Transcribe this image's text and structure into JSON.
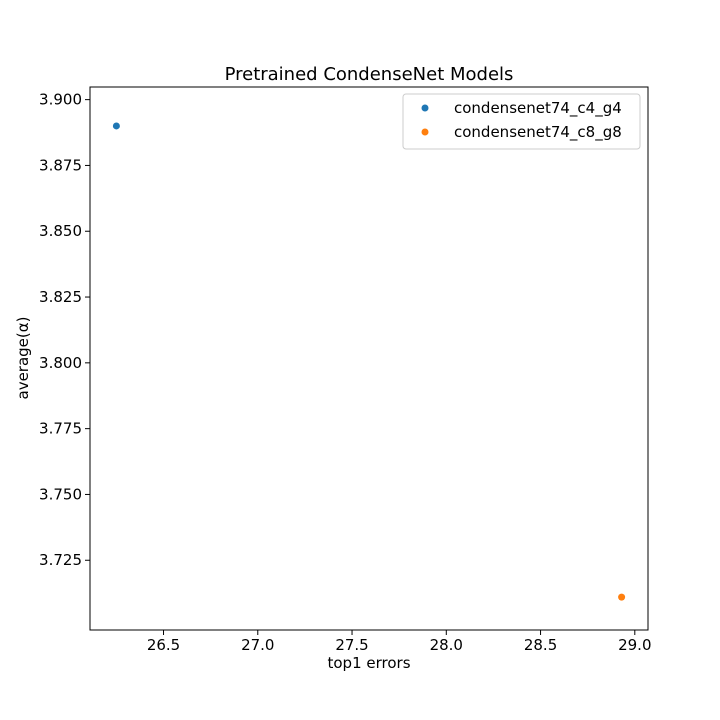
{
  "chart_data": {
    "type": "scatter",
    "title": "Pretrained CondenseNet Models",
    "xlabel": "top1 errors",
    "ylabel": "average(α)",
    "xlim": [
      26.11,
      29.07
    ],
    "ylim": [
      3.6985,
      3.9048
    ],
    "xticks": [
      26.5,
      27.0,
      27.5,
      28.0,
      28.5,
      29.0
    ],
    "xtick_labels": [
      "26.5",
      "27.0",
      "27.5",
      "28.0",
      "28.5",
      "29.0"
    ],
    "yticks": [
      3.725,
      3.75,
      3.775,
      3.8,
      3.825,
      3.85,
      3.875,
      3.9
    ],
    "ytick_labels": [
      "3.725",
      "3.750",
      "3.775",
      "3.800",
      "3.825",
      "3.850",
      "3.875",
      "3.900"
    ],
    "grid": false,
    "legend_position": "top-right",
    "series": [
      {
        "name": "condensenet74_c4_g4",
        "color": "#1f77b4",
        "points": [
          {
            "x": 26.25,
            "y": 3.89
          }
        ]
      },
      {
        "name": "condensenet74_c8_g8",
        "color": "#ff7f0e",
        "points": [
          {
            "x": 28.93,
            "y": 3.711
          }
        ]
      }
    ]
  }
}
